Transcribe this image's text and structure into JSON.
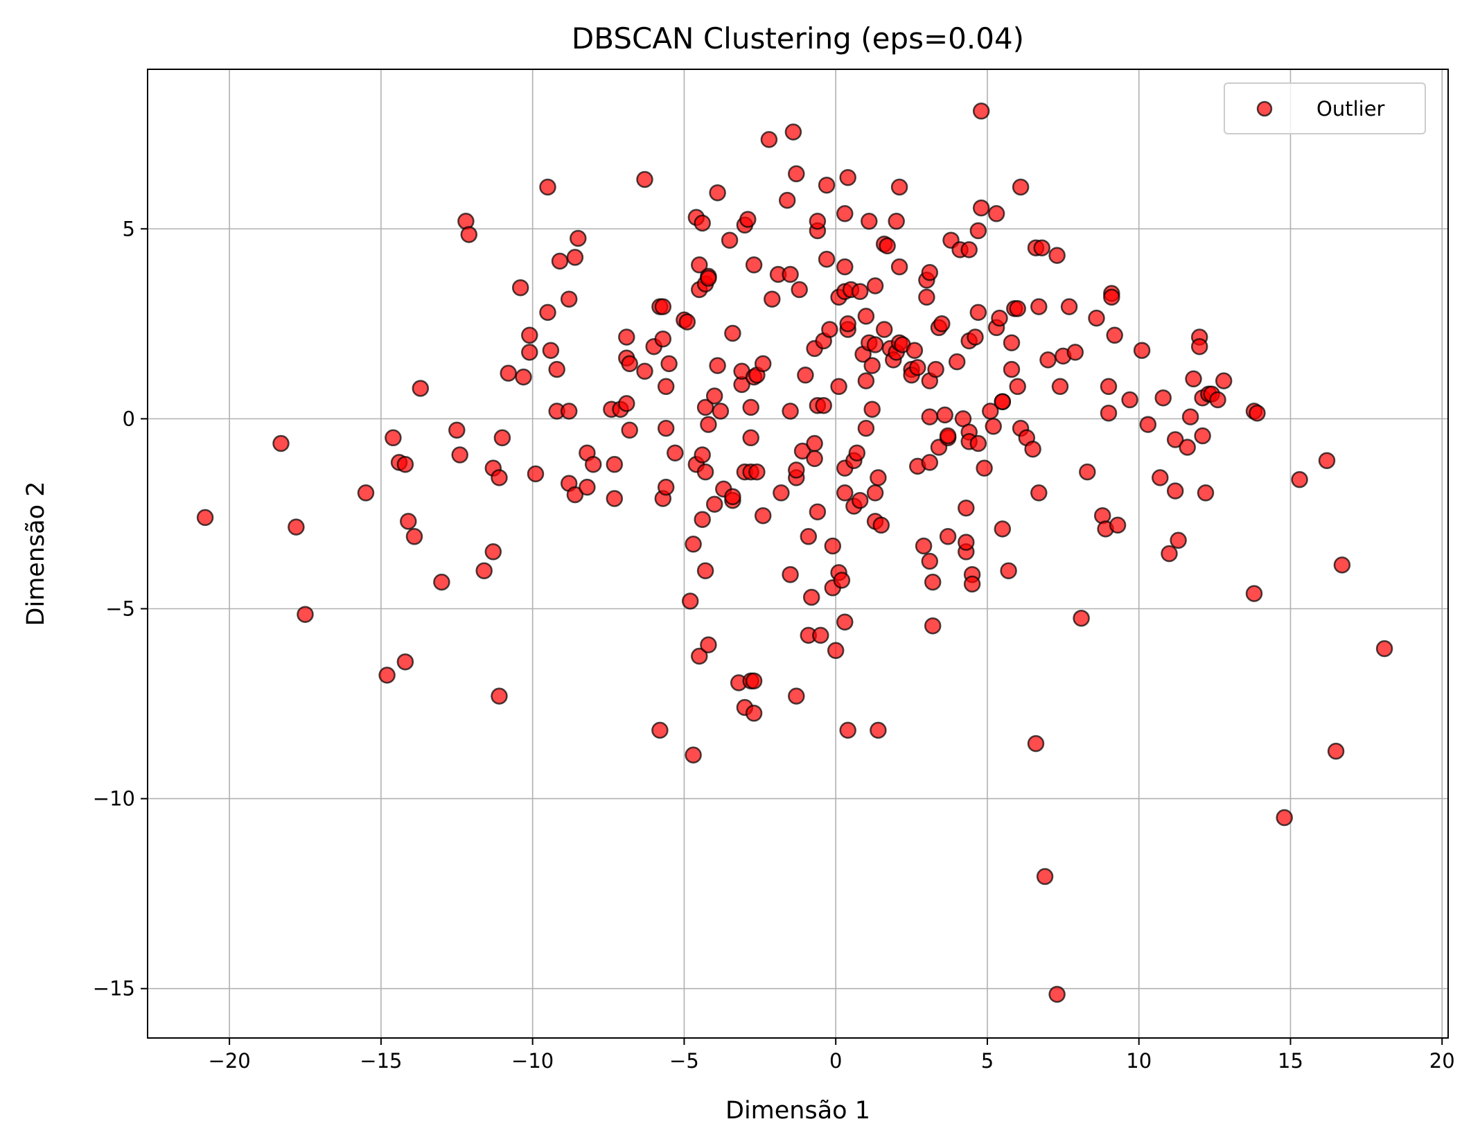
{
  "chart_data": {
    "type": "scatter",
    "title": "DBSCAN Clustering (eps=0.04)",
    "xlabel": "Dimensão 1",
    "ylabel": "Dimensão 2",
    "xlim": [
      -22.7,
      20.2
    ],
    "ylim": [
      -16.3,
      9.2
    ],
    "xticks": [
      -20,
      -15,
      -10,
      -5,
      0,
      5,
      10,
      15,
      20
    ],
    "xtick_labels": [
      "−20",
      "−15",
      "−10",
      "−5",
      "0",
      "5",
      "10",
      "15",
      "20"
    ],
    "yticks": [
      -15,
      -10,
      -5,
      0,
      5
    ],
    "ytick_labels": [
      "−15",
      "−10",
      "−5",
      "0",
      "5"
    ],
    "grid": true,
    "legend_position": "top-right",
    "marker_color": "#ff0000",
    "marker_edge": "#000000",
    "marker_alpha": 0.7,
    "series": [
      {
        "name": "Outlier",
        "points": [
          [
            -20.8,
            -2.6
          ],
          [
            -18.3,
            -0.65
          ],
          [
            -17.8,
            -2.85
          ],
          [
            -17.5,
            -5.15
          ],
          [
            -15.5,
            -1.95
          ],
          [
            -14.8,
            -6.75
          ],
          [
            -14.6,
            -0.5
          ],
          [
            -14.4,
            -1.15
          ],
          [
            -14.2,
            -1.2
          ],
          [
            -14.2,
            -6.4
          ],
          [
            -14.1,
            -2.7
          ],
          [
            -13.9,
            -3.1
          ],
          [
            -13.7,
            0.8
          ],
          [
            -13.0,
            -4.3
          ],
          [
            -12.5,
            -0.3
          ],
          [
            -12.4,
            -0.95
          ],
          [
            -12.2,
            5.2
          ],
          [
            -12.1,
            4.85
          ],
          [
            -11.6,
            -4.0
          ],
          [
            -11.3,
            -1.3
          ],
          [
            -11.3,
            -3.5
          ],
          [
            -11.1,
            -1.55
          ],
          [
            -11.1,
            -7.3
          ],
          [
            -11.0,
            -0.5
          ],
          [
            -10.8,
            1.2
          ],
          [
            -10.4,
            3.45
          ],
          [
            -10.3,
            1.1
          ],
          [
            -10.1,
            2.2
          ],
          [
            -10.1,
            1.75
          ],
          [
            -9.9,
            -1.45
          ],
          [
            -9.5,
            6.1
          ],
          [
            -9.5,
            2.8
          ],
          [
            -9.4,
            1.8
          ],
          [
            -9.2,
            1.3
          ],
          [
            -9.2,
            0.2
          ],
          [
            -9.1,
            4.15
          ],
          [
            -8.8,
            0.2
          ],
          [
            -8.8,
            3.15
          ],
          [
            -8.8,
            -1.7
          ],
          [
            -8.6,
            4.25
          ],
          [
            -8.6,
            -2.0
          ],
          [
            -8.5,
            4.75
          ],
          [
            -8.2,
            -0.9
          ],
          [
            -8.2,
            -1.8
          ],
          [
            -8.0,
            -1.2
          ],
          [
            -7.4,
            0.25
          ],
          [
            -7.3,
            -2.1
          ],
          [
            -7.3,
            -1.2
          ],
          [
            -7.1,
            0.25
          ],
          [
            -6.9,
            0.4
          ],
          [
            -6.9,
            2.15
          ],
          [
            -6.9,
            1.6
          ],
          [
            -6.8,
            1.45
          ],
          [
            -6.8,
            -0.3
          ],
          [
            -6.3,
            6.3
          ],
          [
            -6.3,
            1.25
          ],
          [
            -6.0,
            1.9
          ],
          [
            -5.8,
            2.95
          ],
          [
            -5.8,
            -8.2
          ],
          [
            -5.7,
            2.95
          ],
          [
            -5.7,
            2.1
          ],
          [
            -5.7,
            -2.1
          ],
          [
            -5.6,
            0.85
          ],
          [
            -5.6,
            -1.8
          ],
          [
            -5.6,
            -0.25
          ],
          [
            -5.5,
            1.45
          ],
          [
            -5.3,
            -0.9
          ],
          [
            -5.0,
            2.6
          ],
          [
            -4.9,
            2.55
          ],
          [
            -4.8,
            -4.8
          ],
          [
            -4.7,
            -3.3
          ],
          [
            -4.7,
            -8.85
          ],
          [
            -4.6,
            5.3
          ],
          [
            -4.6,
            -1.2
          ],
          [
            -4.5,
            4.05
          ],
          [
            -4.5,
            3.4
          ],
          [
            -4.5,
            -6.25
          ],
          [
            -4.4,
            5.15
          ],
          [
            -4.4,
            -0.95
          ],
          [
            -4.4,
            -2.65
          ],
          [
            -4.3,
            3.55
          ],
          [
            -4.3,
            0.3
          ],
          [
            -4.3,
            -1.4
          ],
          [
            -4.3,
            -4.0
          ],
          [
            -4.2,
            3.75
          ],
          [
            -4.2,
            3.7
          ],
          [
            -4.2,
            -0.15
          ],
          [
            -4.2,
            -5.95
          ],
          [
            -4.0,
            0.6
          ],
          [
            -4.0,
            -2.25
          ],
          [
            -3.9,
            1.4
          ],
          [
            -3.9,
            5.95
          ],
          [
            -3.8,
            0.2
          ],
          [
            -3.7,
            -1.85
          ],
          [
            -3.5,
            4.7
          ],
          [
            -3.4,
            2.25
          ],
          [
            -3.4,
            -2.15
          ],
          [
            -3.4,
            -2.05
          ],
          [
            -3.2,
            -6.95
          ],
          [
            -3.1,
            0.9
          ],
          [
            -3.1,
            1.25
          ],
          [
            -3.0,
            5.1
          ],
          [
            -3.0,
            -1.4
          ],
          [
            -3.0,
            -7.6
          ],
          [
            -2.9,
            5.25
          ],
          [
            -2.8,
            0.3
          ],
          [
            -2.8,
            -0.5
          ],
          [
            -2.8,
            -1.4
          ],
          [
            -2.8,
            -6.9
          ],
          [
            -2.7,
            -6.9
          ],
          [
            -2.7,
            4.05
          ],
          [
            -2.7,
            1.1
          ],
          [
            -2.7,
            -7.75
          ],
          [
            -2.6,
            1.15
          ],
          [
            -2.6,
            -1.4
          ],
          [
            -2.4,
            1.45
          ],
          [
            -2.4,
            -2.55
          ],
          [
            -2.2,
            7.35
          ],
          [
            -2.1,
            3.15
          ],
          [
            -1.9,
            3.8
          ],
          [
            -1.8,
            -1.95
          ],
          [
            -1.6,
            5.75
          ],
          [
            -1.5,
            3.8
          ],
          [
            -1.5,
            0.2
          ],
          [
            -1.5,
            -4.1
          ],
          [
            -1.4,
            7.55
          ],
          [
            -1.3,
            -7.3
          ],
          [
            -1.3,
            6.45
          ],
          [
            -1.3,
            -1.55
          ],
          [
            -1.3,
            -1.35
          ],
          [
            -1.2,
            3.4
          ],
          [
            -1.1,
            -0.85
          ],
          [
            -1.0,
            1.15
          ],
          [
            -0.9,
            -3.1
          ],
          [
            -0.9,
            -5.7
          ],
          [
            -0.8,
            -4.7
          ],
          [
            -0.7,
            1.85
          ],
          [
            -0.7,
            -0.65
          ],
          [
            -0.7,
            -1.05
          ],
          [
            -0.6,
            0.35
          ],
          [
            -0.6,
            4.95
          ],
          [
            -0.6,
            5.2
          ],
          [
            -0.6,
            -2.45
          ],
          [
            -0.5,
            -5.7
          ],
          [
            -0.4,
            0.35
          ],
          [
            -0.4,
            2.05
          ],
          [
            -0.3,
            4.2
          ],
          [
            -0.3,
            6.15
          ],
          [
            -0.2,
            2.35
          ],
          [
            -0.1,
            -3.35
          ],
          [
            -0.1,
            -4.45
          ],
          [
            0.0,
            -6.1
          ],
          [
            0.1,
            3.2
          ],
          [
            0.1,
            0.85
          ],
          [
            0.1,
            -4.05
          ],
          [
            0.2,
            -4.25
          ],
          [
            0.3,
            4.0
          ],
          [
            0.3,
            3.35
          ],
          [
            0.3,
            5.4
          ],
          [
            0.3,
            -1.3
          ],
          [
            0.3,
            -1.95
          ],
          [
            0.3,
            -5.35
          ],
          [
            0.4,
            6.35
          ],
          [
            0.4,
            2.35
          ],
          [
            0.4,
            2.5
          ],
          [
            0.4,
            -8.2
          ],
          [
            0.5,
            3.4
          ],
          [
            0.6,
            -1.1
          ],
          [
            0.6,
            -2.3
          ],
          [
            0.7,
            -0.9
          ],
          [
            0.8,
            3.35
          ],
          [
            0.8,
            -2.15
          ],
          [
            0.9,
            1.7
          ],
          [
            1.0,
            2.7
          ],
          [
            1.0,
            1.0
          ],
          [
            1.0,
            -0.25
          ],
          [
            1.1,
            2.0
          ],
          [
            1.1,
            5.2
          ],
          [
            1.2,
            1.4
          ],
          [
            1.2,
            0.25
          ],
          [
            1.3,
            1.95
          ],
          [
            1.3,
            3.5
          ],
          [
            1.3,
            -1.95
          ],
          [
            1.3,
            -2.7
          ],
          [
            1.4,
            -1.55
          ],
          [
            1.4,
            -8.2
          ],
          [
            1.5,
            -2.8
          ],
          [
            1.6,
            2.35
          ],
          [
            1.6,
            4.6
          ],
          [
            1.7,
            4.55
          ],
          [
            1.8,
            1.85
          ],
          [
            1.9,
            1.55
          ],
          [
            2.0,
            1.75
          ],
          [
            2.0,
            5.2
          ],
          [
            2.1,
            6.1
          ],
          [
            2.1,
            4.0
          ],
          [
            2.1,
            2.0
          ],
          [
            2.2,
            1.95
          ],
          [
            2.5,
            1.3
          ],
          [
            2.5,
            1.15
          ],
          [
            2.6,
            1.8
          ],
          [
            2.7,
            -1.25
          ],
          [
            2.7,
            1.35
          ],
          [
            2.9,
            -3.35
          ],
          [
            3.0,
            3.2
          ],
          [
            3.0,
            3.65
          ],
          [
            3.1,
            1.0
          ],
          [
            3.1,
            0.05
          ],
          [
            3.1,
            -1.15
          ],
          [
            3.1,
            -3.75
          ],
          [
            3.1,
            3.85
          ],
          [
            3.2,
            -4.3
          ],
          [
            3.2,
            -5.45
          ],
          [
            3.3,
            1.3
          ],
          [
            3.4,
            2.4
          ],
          [
            3.4,
            -0.75
          ],
          [
            3.5,
            2.5
          ],
          [
            3.6,
            0.1
          ],
          [
            3.7,
            -0.5
          ],
          [
            3.7,
            -0.45
          ],
          [
            3.7,
            -3.1
          ],
          [
            3.8,
            4.7
          ],
          [
            4.0,
            1.5
          ],
          [
            4.1,
            4.45
          ],
          [
            4.2,
            0.0
          ],
          [
            4.3,
            -2.35
          ],
          [
            4.3,
            -3.5
          ],
          [
            4.3,
            -3.25
          ],
          [
            4.4,
            4.45
          ],
          [
            4.4,
            2.05
          ],
          [
            4.4,
            -0.35
          ],
          [
            4.4,
            -0.6
          ],
          [
            4.5,
            -4.1
          ],
          [
            4.5,
            -4.35
          ],
          [
            4.6,
            2.15
          ],
          [
            4.7,
            4.95
          ],
          [
            4.7,
            -0.65
          ],
          [
            4.7,
            2.8
          ],
          [
            4.8,
            5.55
          ],
          [
            4.8,
            8.1
          ],
          [
            4.9,
            -1.3
          ],
          [
            5.1,
            0.2
          ],
          [
            5.2,
            -0.2
          ],
          [
            5.3,
            5.4
          ],
          [
            5.3,
            2.4
          ],
          [
            5.4,
            2.65
          ],
          [
            5.5,
            0.45
          ],
          [
            5.5,
            -2.9
          ],
          [
            5.5,
            0.45
          ],
          [
            5.7,
            -4.0
          ],
          [
            5.8,
            2.0
          ],
          [
            5.8,
            1.3
          ],
          [
            5.9,
            2.9
          ],
          [
            6.0,
            2.9
          ],
          [
            6.0,
            0.85
          ],
          [
            6.1,
            6.1
          ],
          [
            6.1,
            -0.25
          ],
          [
            6.3,
            -0.5
          ],
          [
            6.5,
            -0.8
          ],
          [
            6.6,
            -8.55
          ],
          [
            6.6,
            4.5
          ],
          [
            6.7,
            2.95
          ],
          [
            6.7,
            -1.95
          ],
          [
            6.8,
            4.5
          ],
          [
            6.9,
            -12.05
          ],
          [
            7.0,
            1.55
          ],
          [
            7.3,
            4.3
          ],
          [
            7.3,
            -15.15
          ],
          [
            7.4,
            0.85
          ],
          [
            7.5,
            1.65
          ],
          [
            7.7,
            2.95
          ],
          [
            7.9,
            1.75
          ],
          [
            8.1,
            -5.25
          ],
          [
            8.3,
            -1.4
          ],
          [
            8.6,
            2.65
          ],
          [
            8.8,
            -2.55
          ],
          [
            8.9,
            -2.9
          ],
          [
            9.0,
            0.15
          ],
          [
            9.0,
            0.85
          ],
          [
            9.1,
            3.3
          ],
          [
            9.1,
            3.2
          ],
          [
            9.2,
            2.2
          ],
          [
            9.3,
            -2.8
          ],
          [
            9.7,
            0.5
          ],
          [
            10.1,
            1.8
          ],
          [
            10.3,
            -0.15
          ],
          [
            10.7,
            -1.55
          ],
          [
            10.8,
            0.55
          ],
          [
            11.0,
            -3.55
          ],
          [
            11.2,
            -0.55
          ],
          [
            11.2,
            -1.9
          ],
          [
            11.3,
            -3.2
          ],
          [
            11.6,
            -0.75
          ],
          [
            11.7,
            0.05
          ],
          [
            11.8,
            1.05
          ],
          [
            12.0,
            2.15
          ],
          [
            12.0,
            1.9
          ],
          [
            12.1,
            0.55
          ],
          [
            12.1,
            -0.45
          ],
          [
            12.2,
            -1.95
          ],
          [
            12.3,
            0.65
          ],
          [
            12.4,
            0.65
          ],
          [
            12.6,
            0.5
          ],
          [
            12.8,
            1.0
          ],
          [
            13.8,
            0.2
          ],
          [
            13.8,
            -4.6
          ],
          [
            13.9,
            0.15
          ],
          [
            14.8,
            -10.5
          ],
          [
            15.3,
            -1.6
          ],
          [
            16.2,
            -1.1
          ],
          [
            16.5,
            -8.75
          ],
          [
            16.7,
            -3.85
          ],
          [
            18.1,
            -6.05
          ]
        ]
      }
    ]
  }
}
